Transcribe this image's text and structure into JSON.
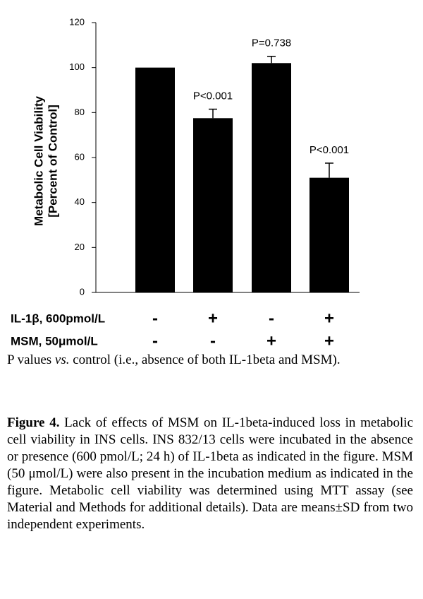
{
  "chart_data": {
    "type": "bar",
    "ylabel": [
      "Metabolic Cell Viability",
      "[Percent of Control]"
    ],
    "categories": [
      null,
      null,
      null,
      null
    ],
    "values": [
      100,
      77.5,
      102,
      51
    ],
    "errors": [
      null,
      4,
      3,
      6.5
    ],
    "annotations": [
      null,
      "P<0.001",
      "P=0.738",
      "P<0.001"
    ],
    "color": "#000000",
    "ylim": [
      0,
      120
    ],
    "yticks": [
      0,
      20,
      40,
      60,
      80,
      100,
      120
    ],
    "treatments": [
      {
        "name": "IL-1β, 600pmol/L",
        "signs": [
          "-",
          "+",
          "-",
          "+"
        ]
      },
      {
        "name": "MSM, 50μmol/L",
        "signs": [
          "-",
          "-",
          "+",
          "+"
        ]
      }
    ]
  },
  "note": [
    "P values ",
    "vs.",
    " control (i.e., absence of both IL-1beta and MSM)."
  ],
  "caption_label": "Figure 4.",
  "caption": "Lack of effects of MSM on IL-1beta-induced loss in metabolic cell viability in INS cells. INS 832/13 cells were incubated in the absence or presence (600 pmol/L; 24 h) of IL-1beta as indicated in the figure. MSM (50 μmol/L) were also present in the incubation medium as indicated in the figure. Metabolic cell viability was determined using MTT assay (see Material and Methods for additional details). Data are means±SD from two independent experiments."
}
